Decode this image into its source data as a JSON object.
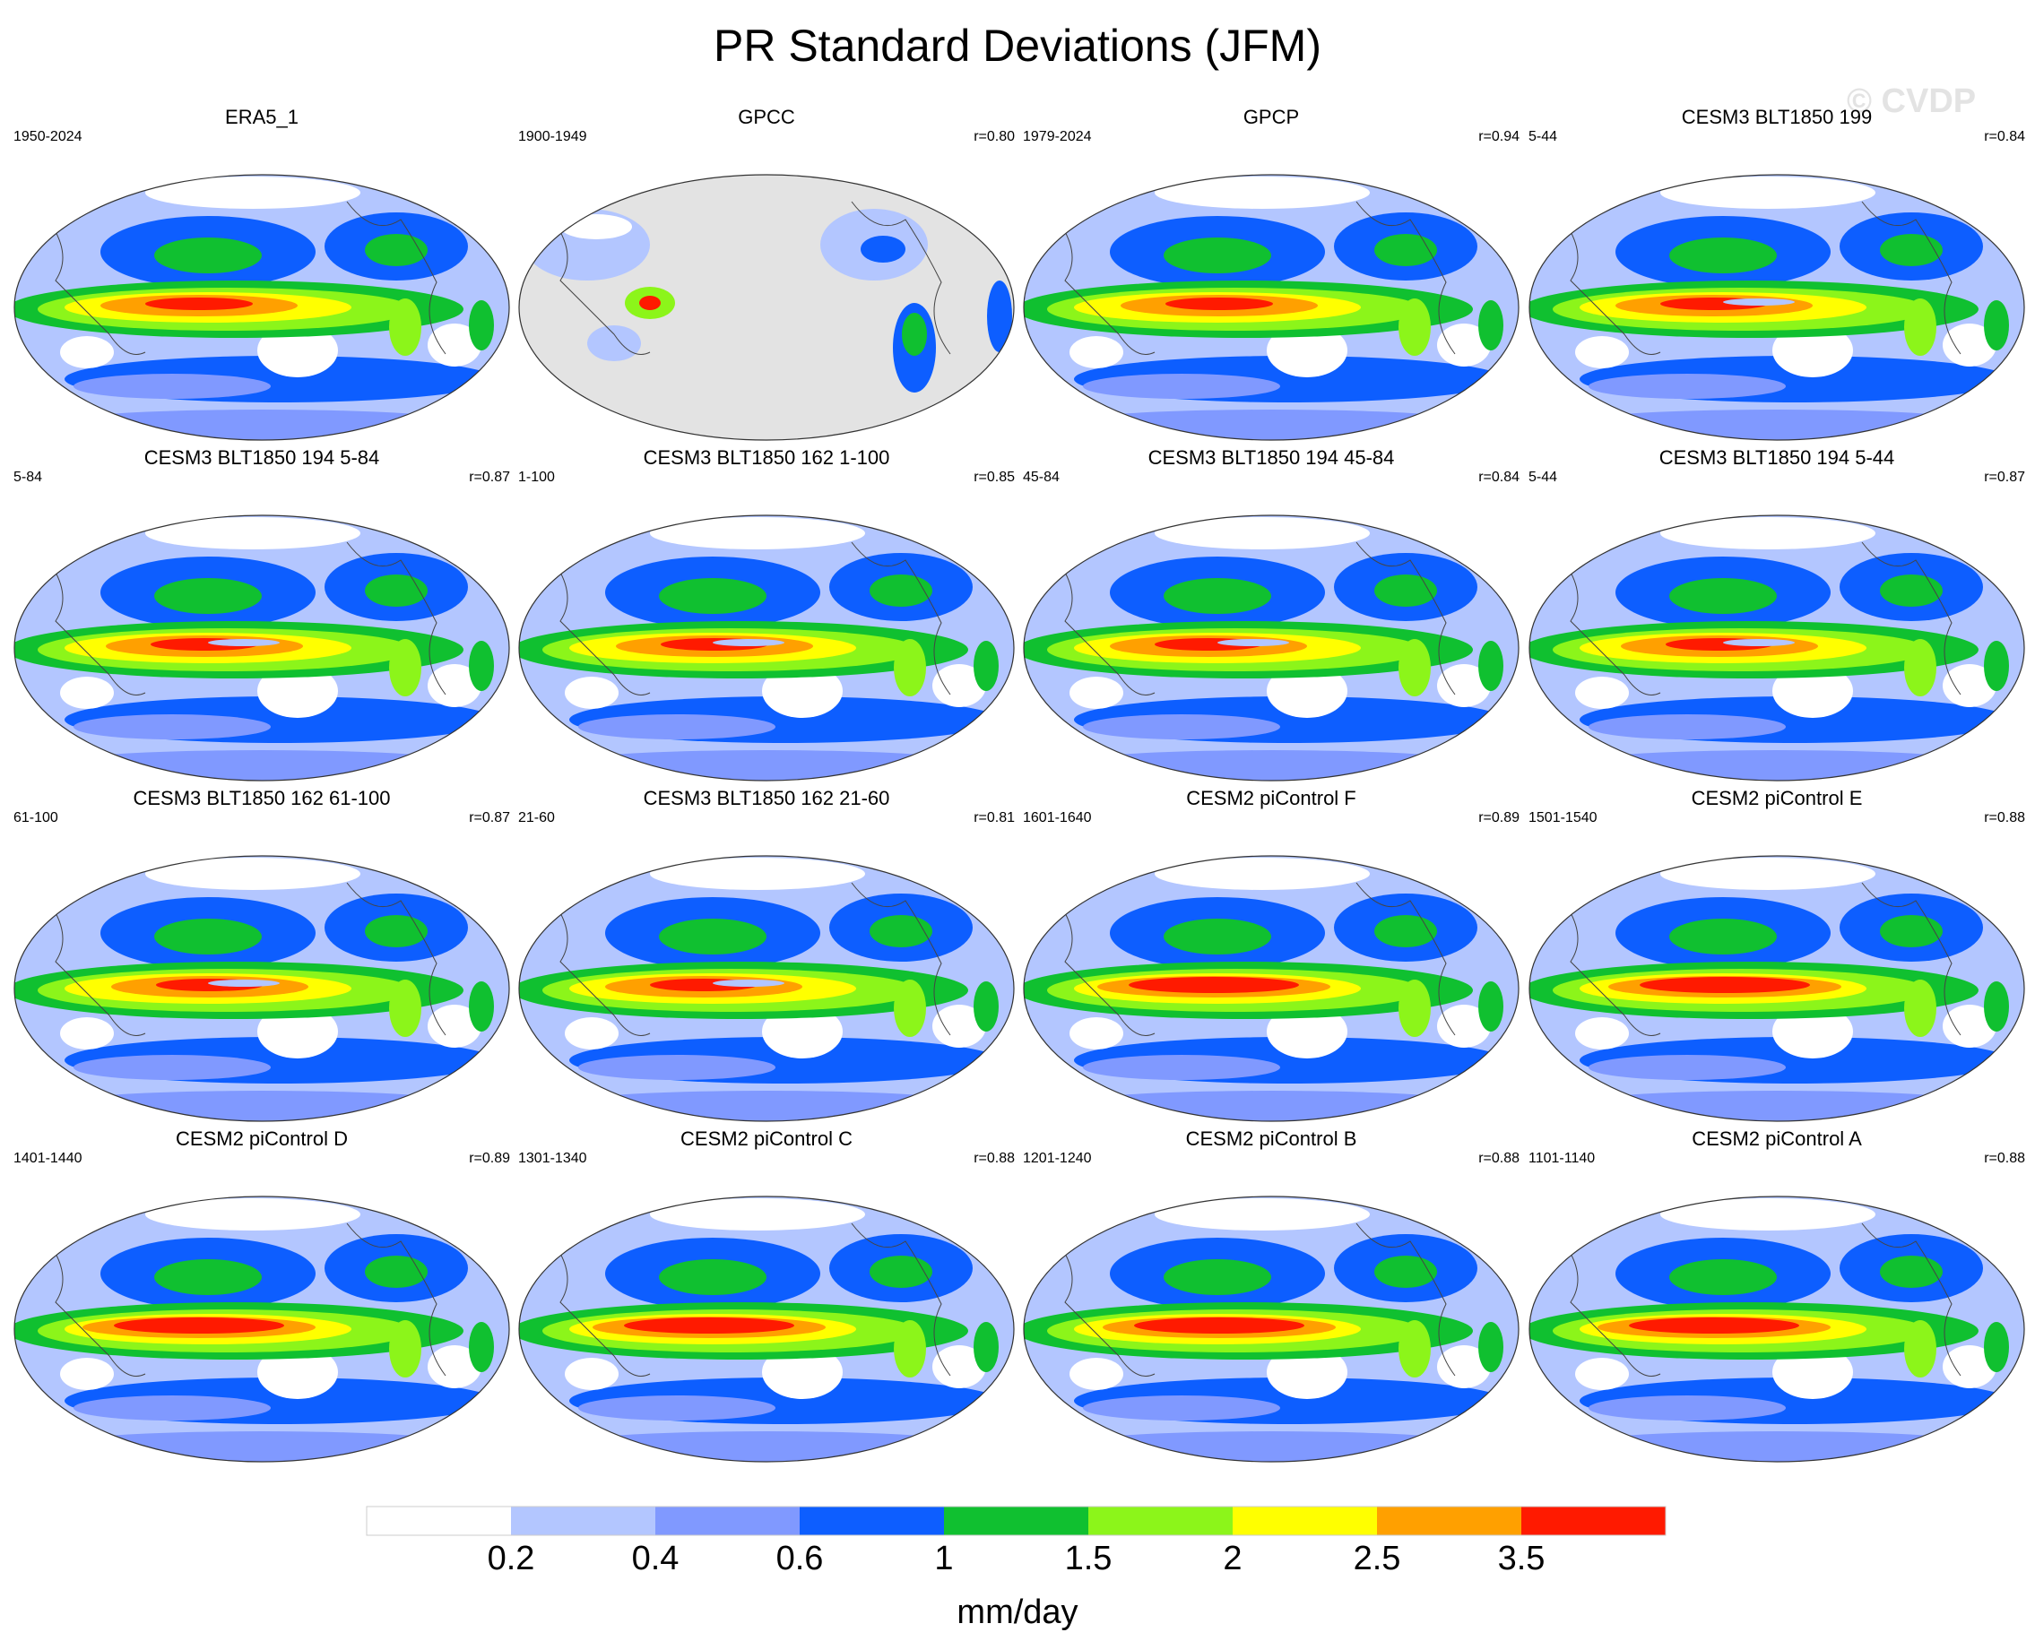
{
  "title": "PR Standard Deviations (JFM)",
  "watermark": "© CVDP",
  "colorbar": {
    "label": "mm/day",
    "ticks": [
      "0.2",
      "0.4",
      "0.6",
      "1",
      "1.5",
      "2",
      "2.5",
      "3.5"
    ],
    "colors": [
      "#ffffff",
      "#b3c6ff",
      "#8099ff",
      "#0d5eff",
      "#10c030",
      "#8cf51a",
      "#ffff00",
      "#ffa000",
      "#ff1a00"
    ]
  },
  "panels": [
    {
      "title": "ERA5_1",
      "years": "1950-2024",
      "r": "",
      "style": "obs"
    },
    {
      "title": "GPCC",
      "years": "1900-1949",
      "r": "r=0.80",
      "style": "land"
    },
    {
      "title": "GPCP",
      "years": "1979-2024",
      "r": "r=0.94",
      "style": "obs"
    },
    {
      "title": "CESM3 BLT1850 199",
      "years": "5-44",
      "r": "r=0.84",
      "style": "model"
    },
    {
      "title": "CESM3 BLT1850 194 5-84",
      "years": "5-84",
      "r": "r=0.87",
      "style": "model"
    },
    {
      "title": "CESM3 BLT1850 162 1-100",
      "years": "1-100",
      "r": "r=0.85",
      "style": "model"
    },
    {
      "title": "CESM3 BLT1850 194 45-84",
      "years": "45-84",
      "r": "r=0.84",
      "style": "model"
    },
    {
      "title": "CESM3 BLT1850 194 5-44",
      "years": "5-44",
      "r": "r=0.87",
      "style": "model"
    },
    {
      "title": "CESM3 BLT1850 162 61-100",
      "years": "61-100",
      "r": "r=0.87",
      "style": "model"
    },
    {
      "title": "CESM3 BLT1850 162 21-60",
      "years": "21-60",
      "r": "r=0.81",
      "style": "model"
    },
    {
      "title": "CESM2 piControl F",
      "years": "1601-1640",
      "r": "r=0.89",
      "style": "cesm2"
    },
    {
      "title": "CESM2 piControl E",
      "years": "1501-1540",
      "r": "r=0.88",
      "style": "cesm2"
    },
    {
      "title": "CESM2 piControl D",
      "years": "1401-1440",
      "r": "r=0.89",
      "style": "cesm2"
    },
    {
      "title": "CESM2 piControl C",
      "years": "1301-1340",
      "r": "r=0.88",
      "style": "cesm2"
    },
    {
      "title": "CESM2 piControl B",
      "years": "1201-1240",
      "r": "r=0.88",
      "style": "cesm2"
    },
    {
      "title": "CESM2 piControl A",
      "years": "1101-1140",
      "r": "r=0.88",
      "style": "cesm2"
    }
  ]
}
